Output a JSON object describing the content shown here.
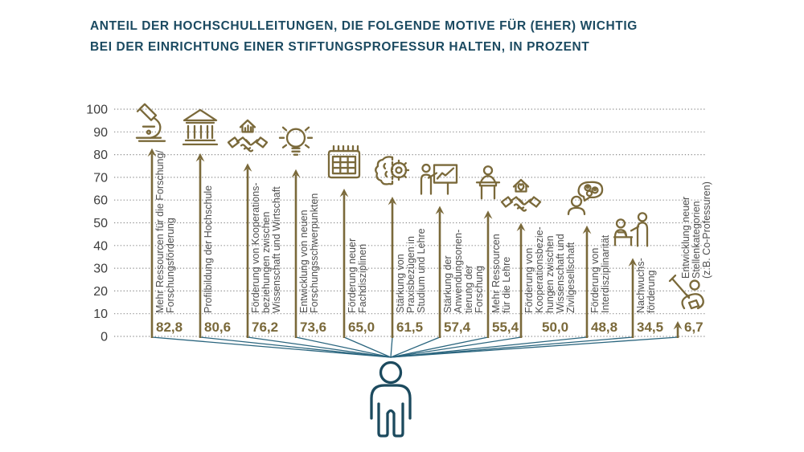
{
  "title": {
    "line1": "ANTEIL DER HOCHSCHULLEITUNGEN, DIE FOLGENDE MOTIVE FÜR (EHER) WICHTIG",
    "line2": "BEI DER EINRICHTUNG EINER STIFTUNGSPROFESSUR HALTEN, IN PROZENT"
  },
  "colors": {
    "olive": "#7a693a",
    "teal_dark": "#1c4a5e",
    "teal_fan": "#2a657e",
    "title_blue": "#1b4a61",
    "axis_text": "#3d3d3d",
    "label_gray": "#4f4f4f",
    "grid_gray": "#8f8f8f"
  },
  "chart_data": {
    "type": "bar",
    "title": "Anteil der Hochschulleitungen, die folgende Motive für (eher) wichtig bei der Einrichtung einer Stiftungsprofessur halten, in Prozent",
    "ylabel": "Prozent",
    "ylim": [
      0,
      100
    ],
    "yticks": [
      0,
      10,
      20,
      30,
      40,
      50,
      60,
      70,
      80,
      90,
      100
    ],
    "grid": "dotted",
    "items": [
      {
        "icon": "microscope-icon",
        "value": 82.8,
        "value_label": "82,8",
        "label_lines": [
          "Mehr Ressourcen für die Forschung/",
          "Forschungsförderung"
        ]
      },
      {
        "icon": "university-building-icon",
        "value": 80.6,
        "value_label": "80,6",
        "label_lines": [
          "Profilbildung der Hochschule"
        ]
      },
      {
        "icon": "handshake-economy-icon",
        "value": 76.2,
        "value_label": "76,2",
        "label_lines": [
          "Förderung von Kooperations-",
          "beziehungen zwischen",
          "Wissenschaft und Wirtschaft"
        ]
      },
      {
        "icon": "lightbulb-icon",
        "value": 73.6,
        "value_label": "73,6",
        "label_lines": [
          "Entwicklung von neuen",
          "Forschungsschwerpunkten"
        ]
      },
      {
        "icon": "calendar-icon",
        "value": 65.0,
        "value_label": "65,0",
        "label_lines": [
          "Förderung neuer",
          "Fachdisziplinen"
        ]
      },
      {
        "icon": "brain-gear-icon",
        "value": 61.5,
        "value_label": "61,5",
        "label_lines": [
          "Stärkung von",
          "Praxisbezügen in",
          "Studium und Lehre"
        ]
      },
      {
        "icon": "presentation-icon",
        "value": 57.4,
        "value_label": "57,4",
        "label_lines": [
          "Stärkung der",
          "Anwendungsorien-",
          "tierung der",
          "Forschung"
        ]
      },
      {
        "icon": "lectern-icon",
        "value": 55.4,
        "value_label": "55,4",
        "label_lines": [
          "Mehr Ressourcen",
          "für die Lehre"
        ]
      },
      {
        "icon": "handshake-society-icon",
        "value": 50.0,
        "value_label": "50,0",
        "label_lines": [
          "Förderung von",
          "Kooperationsbezie-",
          "hungen zwischen",
          "Wissenschaft und",
          "Zivilgesellschaft"
        ]
      },
      {
        "icon": "interdisciplinary-speech-icon",
        "value": 48.8,
        "value_label": "48,8",
        "label_lines": [
          "Förderung von",
          "Interdisziplinarität"
        ]
      },
      {
        "icon": "mentoring-icon",
        "value": 34.5,
        "value_label": "34,5",
        "label_lines": [
          "Nachwuchs-",
          "förderung"
        ]
      },
      {
        "icon": "flag-person-icon",
        "value": 6.7,
        "value_label": "6,7",
        "label_lines": [
          "Entwicklung neuer",
          "Stellenkategorien",
          "(z.B. Co-Professuren)"
        ]
      }
    ]
  }
}
